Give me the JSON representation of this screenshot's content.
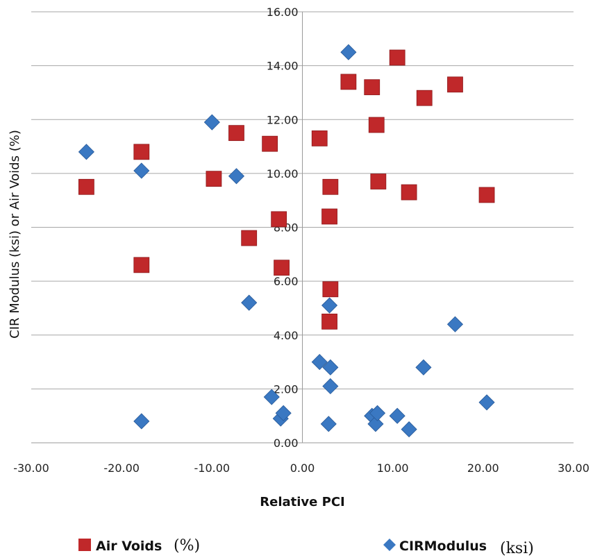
{
  "chart_data": {
    "type": "scatter",
    "xlabel": "Relative PCI",
    "ylabel": "CIR Modulus (ksi) or Air Voids (%)",
    "xlim": [
      -30,
      30
    ],
    "ylim": [
      0,
      16
    ],
    "x_ticks": [
      "-30.00",
      "-20.00",
      "-10.00",
      "0.00",
      "10.00",
      "20.00",
      "30.00"
    ],
    "y_ticks": [
      "0.00",
      "2.00",
      "4.00",
      "6.00",
      "8.00",
      "10.00",
      "12.00",
      "14.00",
      "16.00"
    ],
    "grid": "horizontal",
    "legend_position": "bottom",
    "series": [
      {
        "name": "Air Voids",
        "unit": "(%)",
        "marker": "square",
        "color": "#c0282a",
        "points": [
          [
            -23.9,
            9.5
          ],
          [
            -17.8,
            10.8
          ],
          [
            -17.8,
            6.6
          ],
          [
            -9.8,
            9.8
          ],
          [
            -7.3,
            11.5
          ],
          [
            -5.9,
            7.6
          ],
          [
            -3.6,
            11.1
          ],
          [
            -2.6,
            8.3
          ],
          [
            -2.3,
            6.5
          ],
          [
            1.9,
            11.3
          ],
          [
            3.0,
            8.4
          ],
          [
            3.1,
            9.5
          ],
          [
            3.1,
            5.7
          ],
          [
            3.0,
            4.5
          ],
          [
            5.1,
            13.4
          ],
          [
            7.7,
            13.2
          ],
          [
            8.2,
            11.8
          ],
          [
            8.4,
            9.7
          ],
          [
            10.5,
            14.3
          ],
          [
            11.8,
            9.3
          ],
          [
            13.5,
            12.8
          ],
          [
            16.9,
            13.3
          ],
          [
            20.4,
            9.2
          ]
        ]
      },
      {
        "name": "CIRModulus",
        "unit": "(ksi)",
        "marker": "diamond",
        "color": "#3a78c2",
        "points": [
          [
            -23.9,
            10.8
          ],
          [
            -17.8,
            10.1
          ],
          [
            -17.8,
            0.8
          ],
          [
            -10.0,
            11.9
          ],
          [
            -7.3,
            9.9
          ],
          [
            -5.9,
            5.2
          ],
          [
            -3.4,
            1.7
          ],
          [
            -2.4,
            0.9
          ],
          [
            -2.1,
            1.1
          ],
          [
            1.9,
            3.0
          ],
          [
            3.0,
            5.1
          ],
          [
            3.1,
            2.8
          ],
          [
            3.1,
            2.1
          ],
          [
            2.9,
            0.7
          ],
          [
            5.1,
            14.5
          ],
          [
            7.7,
            1.0
          ],
          [
            8.1,
            0.7
          ],
          [
            8.3,
            1.1
          ],
          [
            10.5,
            1.0
          ],
          [
            11.8,
            0.5
          ],
          [
            13.4,
            2.8
          ],
          [
            16.9,
            4.4
          ],
          [
            20.4,
            1.5
          ]
        ]
      }
    ]
  }
}
